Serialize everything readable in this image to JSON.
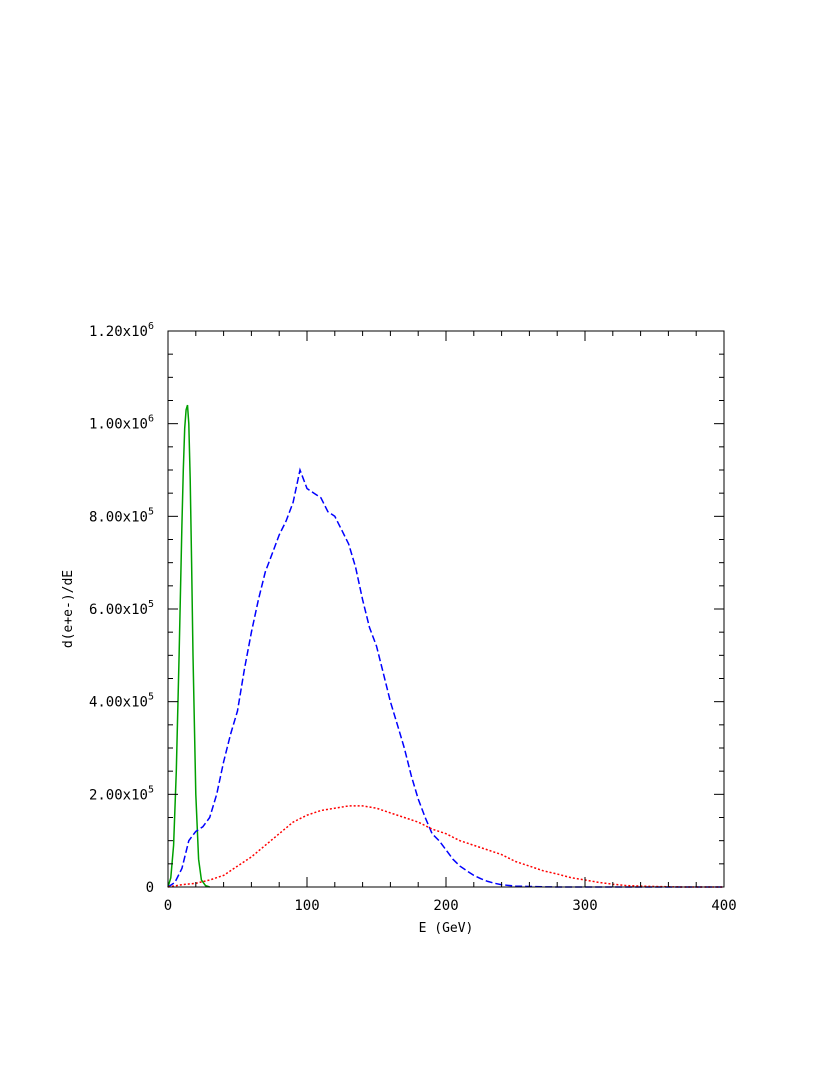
{
  "chart_data": {
    "type": "line",
    "xlabel": "E (GeV)",
    "ylabel": "d(e+e-)/dE",
    "xlim": [
      0,
      400
    ],
    "ylim": [
      0,
      1200000
    ],
    "grid": false,
    "x_ticks": [
      0,
      100,
      200,
      300,
      400
    ],
    "x_tick_labels": [
      "0",
      "100",
      "200",
      "300",
      "400"
    ],
    "y_ticks": [
      0,
      200000,
      400000,
      600000,
      800000,
      1000000,
      1200000
    ],
    "y_tick_labels": [
      {
        "mantissa": "0",
        "exponent": ""
      },
      {
        "mantissa": "2.00x10",
        "exponent": "5"
      },
      {
        "mantissa": "4.00x10",
        "exponent": "5"
      },
      {
        "mantissa": "6.00x10",
        "exponent": "5"
      },
      {
        "mantissa": "8.00x10",
        "exponent": "5"
      },
      {
        "mantissa": "1.00x10",
        "exponent": "6"
      },
      {
        "mantissa": "1.20x10",
        "exponent": "6"
      }
    ],
    "series": [
      {
        "color": "#00a000",
        "line_style": "solid",
        "x": [
          0,
          2,
          4,
          6,
          8,
          10,
          11,
          12,
          13,
          14,
          15,
          16,
          17,
          18,
          20,
          22,
          24,
          27,
          30
        ],
        "y": [
          0,
          20000,
          90000,
          250000,
          500000,
          780000,
          900000,
          990000,
          1030000,
          1040000,
          1000000,
          880000,
          700000,
          500000,
          200000,
          60000,
          15000,
          3000,
          0
        ]
      },
      {
        "color": "#0000ff",
        "line_style": "dashed",
        "x": [
          0,
          5,
          10,
          15,
          20,
          25,
          30,
          35,
          40,
          45,
          50,
          55,
          60,
          65,
          70,
          75,
          80,
          85,
          90,
          95,
          100,
          105,
          110,
          115,
          120,
          125,
          130,
          135,
          140,
          145,
          150,
          155,
          160,
          165,
          170,
          175,
          180,
          185,
          190,
          195,
          200,
          205,
          210,
          215,
          220,
          225,
          230,
          235,
          240,
          250,
          260,
          270,
          280,
          300,
          350,
          400
        ],
        "y": [
          0,
          10000,
          40000,
          100000,
          120000,
          130000,
          150000,
          200000,
          270000,
          330000,
          380000,
          470000,
          550000,
          620000,
          680000,
          720000,
          760000,
          790000,
          830000,
          900000,
          860000,
          850000,
          840000,
          810000,
          800000,
          770000,
          740000,
          690000,
          620000,
          560000,
          520000,
          460000,
          400000,
          350000,
          300000,
          240000,
          190000,
          150000,
          115000,
          100000,
          80000,
          60000,
          45000,
          35000,
          25000,
          18000,
          12000,
          8000,
          5000,
          2000,
          1000,
          500,
          0,
          0,
          0,
          0
        ]
      },
      {
        "color": "#ff0000",
        "line_style": "dotted",
        "x": [
          0,
          10,
          20,
          30,
          40,
          50,
          60,
          70,
          80,
          90,
          100,
          110,
          120,
          130,
          140,
          150,
          160,
          170,
          180,
          190,
          200,
          210,
          220,
          230,
          240,
          250,
          260,
          270,
          280,
          290,
          300,
          310,
          320,
          330,
          340,
          350,
          370,
          400
        ],
        "y": [
          0,
          5000,
          8000,
          15000,
          25000,
          45000,
          65000,
          90000,
          115000,
          140000,
          155000,
          165000,
          170000,
          175000,
          175000,
          170000,
          160000,
          150000,
          140000,
          125000,
          115000,
          100000,
          90000,
          80000,
          70000,
          55000,
          45000,
          35000,
          28000,
          20000,
          15000,
          10000,
          6000,
          3000,
          2000,
          1000,
          0,
          0
        ]
      }
    ]
  }
}
